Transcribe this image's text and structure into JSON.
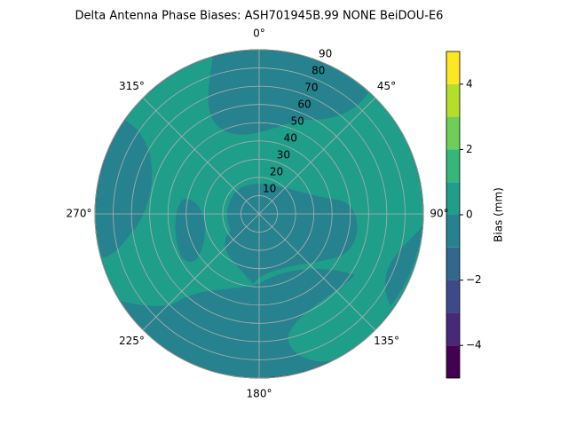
{
  "chart_data": {
    "type": "polar_contour",
    "title": "Delta Antenna Phase Biases: ASH701945B.99   NONE BeiDOU-E6",
    "theta_zero": "N",
    "theta_direction": "clockwise",
    "rlim": [
      0,
      90
    ],
    "rticks": [
      10,
      20,
      30,
      40,
      50,
      60,
      70,
      80,
      90
    ],
    "theta_ticks": [
      {
        "value": 0,
        "label": "0°"
      },
      {
        "value": 45,
        "label": "45°"
      },
      {
        "value": 90,
        "label": "90°"
      },
      {
        "value": 135,
        "label": "135°"
      },
      {
        "value": 180,
        "label": "180°"
      },
      {
        "value": 225,
        "label": "225°"
      },
      {
        "value": 270,
        "label": "270°"
      },
      {
        "value": 315,
        "label": "315°"
      }
    ],
    "grid": true,
    "colorbar": {
      "label": "Bias (mm)",
      "lim": [
        -5,
        5
      ],
      "levels": [
        -5,
        -4,
        -3,
        -2,
        -1,
        0,
        1,
        2,
        3,
        4,
        5
      ],
      "colors": [
        "#440154",
        "#482878",
        "#3e4989",
        "#31688e",
        "#26828e",
        "#1f9e89",
        "#35b779",
        "#6ece58",
        "#b5de2b",
        "#fde725"
      ],
      "ticks": [
        {
          "value": -4,
          "label": "−4"
        },
        {
          "value": -2,
          "label": "−2"
        },
        0,
        2,
        4
      ]
    }
  }
}
